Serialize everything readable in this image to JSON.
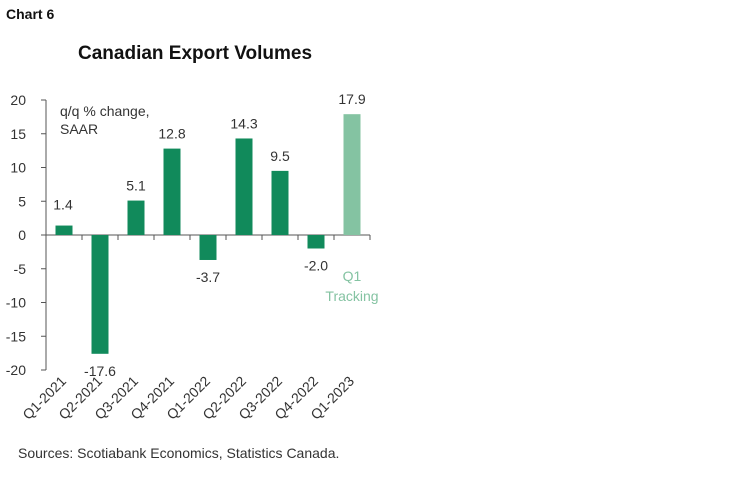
{
  "header": {
    "chart_label": "Chart 6"
  },
  "footer": {
    "source": "Sources: Scotiabank Economics, Statistics Canada."
  },
  "colors": {
    "actual": "#118a5b",
    "tracking": "#84c3a2",
    "axis": "#555555"
  },
  "chart_data": {
    "type": "bar",
    "title": "Canadian Export Volumes",
    "unit_label": [
      "q/q % change,",
      "SAAR"
    ],
    "categories": [
      "Q1-2021",
      "Q2-2021",
      "Q3-2021",
      "Q4-2021",
      "Q1-2022",
      "Q2-2022",
      "Q3-2022",
      "Q4-2022",
      "Q1-2023"
    ],
    "values": [
      1.4,
      -17.6,
      5.1,
      12.8,
      -3.7,
      14.3,
      9.5,
      -2.0,
      17.9
    ],
    "value_labels": [
      "1.4",
      "-17.6",
      "5.1",
      "12.8",
      "-3.7",
      "14.3",
      "9.5",
      "-2.0",
      "17.9"
    ],
    "tracking_annotation": [
      "Q1",
      "Tracking"
    ],
    "ylim": [
      -20,
      20
    ],
    "yticks": [
      "20",
      "15",
      "10",
      "5",
      "0",
      "-5",
      "-10",
      "-15",
      "-20"
    ],
    "legend": "none",
    "grid": false
  }
}
